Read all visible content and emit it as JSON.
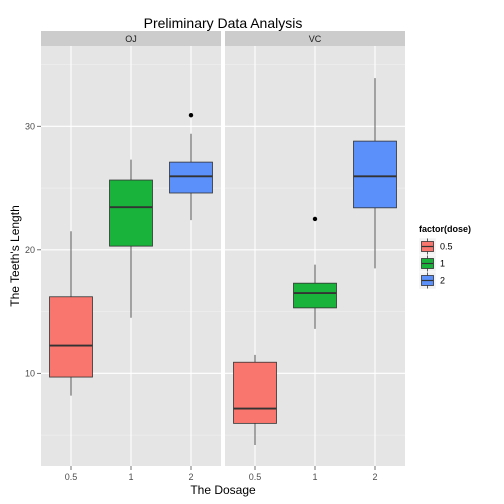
{
  "chart_data": {
    "type": "box",
    "title": "Preliminary Data Analysis",
    "xlabel": "The Dosage",
    "ylabel": "The Teeth's Length",
    "ylim": [
      2.5,
      36.5
    ],
    "yticks": [
      10,
      20,
      30
    ],
    "categories": [
      "0.5",
      "1",
      "2"
    ],
    "grid": true,
    "legend": {
      "title": "factor(dose)",
      "position": "right",
      "entries": [
        {
          "label": "0.5",
          "color": "#F8766D"
        },
        {
          "label": "1",
          "color": "#19B33C"
        },
        {
          "label": "2",
          "color": "#5B8FF9"
        }
      ]
    },
    "panels": [
      {
        "label": "OJ",
        "boxes": [
          {
            "x": "0.5",
            "min": 8.2,
            "q1": 9.7,
            "median": 12.25,
            "q3": 16.2,
            "max": 21.5,
            "outliers": []
          },
          {
            "x": "1",
            "min": 14.5,
            "q1": 20.3,
            "median": 23.45,
            "q3": 25.65,
            "max": 27.3,
            "outliers": []
          },
          {
            "x": "2",
            "min": 22.4,
            "q1": 24.6,
            "median": 25.95,
            "q3": 27.1,
            "max": 29.4,
            "outliers": [
              30.9
            ]
          }
        ]
      },
      {
        "label": "VC",
        "boxes": [
          {
            "x": "0.5",
            "min": 4.2,
            "q1": 5.95,
            "median": 7.15,
            "q3": 10.9,
            "max": 11.5,
            "outliers": []
          },
          {
            "x": "1",
            "min": 13.6,
            "q1": 15.3,
            "median": 16.5,
            "q3": 17.3,
            "max": 18.8,
            "outliers": [
              22.5
            ]
          },
          {
            "x": "2",
            "min": 18.5,
            "q1": 23.4,
            "median": 25.95,
            "q3": 28.8,
            "max": 33.9,
            "outliers": []
          }
        ]
      }
    ]
  }
}
